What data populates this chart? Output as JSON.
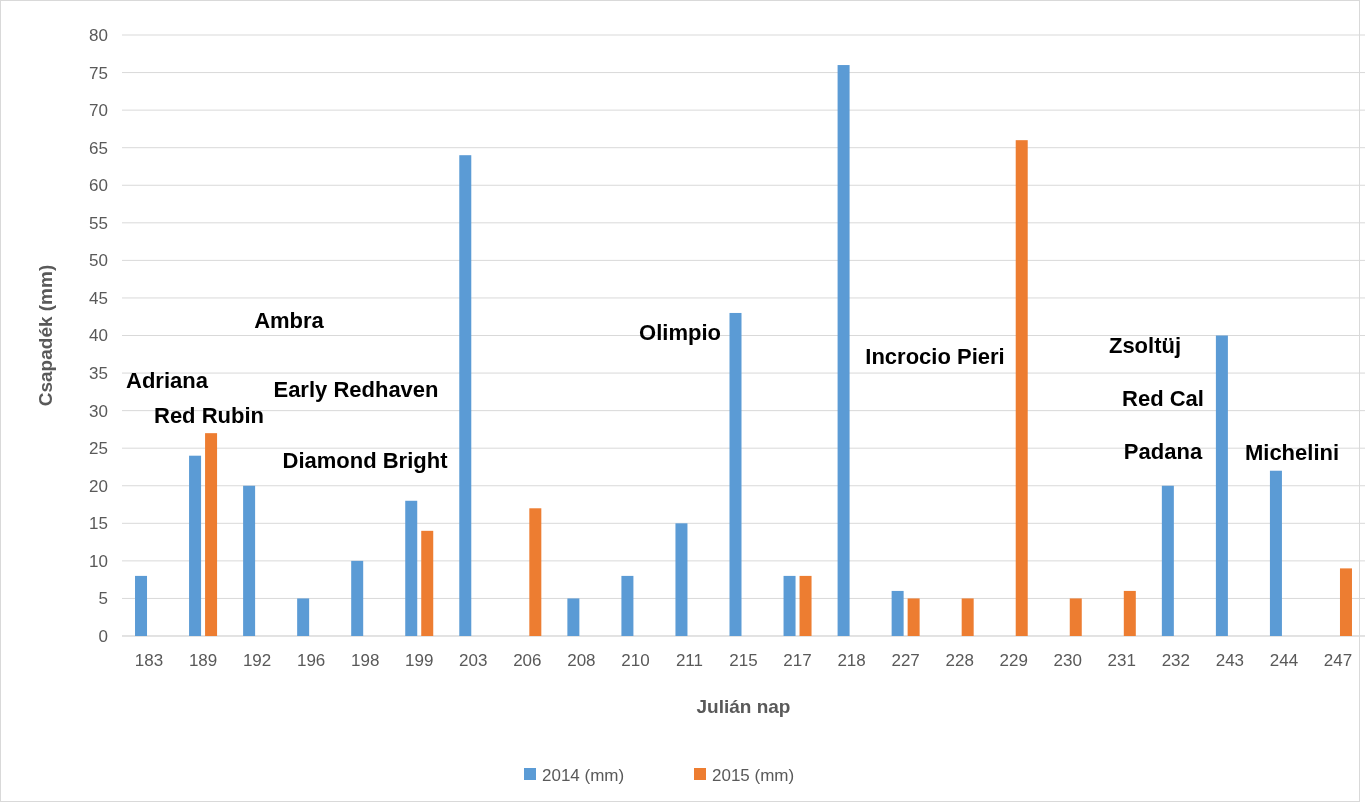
{
  "chart_data": {
    "type": "bar",
    "xlabel": "Julián nap",
    "ylabel": "Csapadék (mm)",
    "categories": [
      "183",
      "189",
      "192",
      "196",
      "198",
      "199",
      "203",
      "206",
      "208",
      "210",
      "211",
      "215",
      "217",
      "218",
      "227",
      "228",
      "229",
      "230",
      "231",
      "232",
      "243",
      "244",
      "247"
    ],
    "series": [
      {
        "name": "2014 (mm)",
        "color": "#5b9bd5",
        "values": [
          8,
          24,
          20,
          5,
          10,
          18,
          64,
          null,
          5,
          8,
          15,
          43,
          8,
          76,
          6,
          null,
          null,
          null,
          null,
          20,
          40,
          22,
          null
        ]
      },
      {
        "name": "2015 (mm)",
        "color": "#ed7d31",
        "values": [
          null,
          27,
          null,
          null,
          null,
          14,
          null,
          17,
          null,
          null,
          null,
          null,
          8,
          null,
          5,
          5,
          66,
          5,
          6,
          null,
          null,
          null,
          9
        ]
      }
    ],
    "ylim": [
      0,
      80
    ],
    "yticks": [
      0,
      5,
      10,
      15,
      20,
      25,
      30,
      35,
      40,
      45,
      50,
      55,
      60,
      65,
      70,
      75,
      80
    ],
    "grid": "y",
    "legend": "bottom",
    "annotations": [
      "Adriana",
      "Red Rubin",
      "Ambra",
      "Early Redhaven",
      "Diamond Bright",
      "Olimpio",
      "Incrocio Pieri",
      "Zsoltüj",
      "Red Cal",
      "Padana",
      "Michelini"
    ]
  }
}
